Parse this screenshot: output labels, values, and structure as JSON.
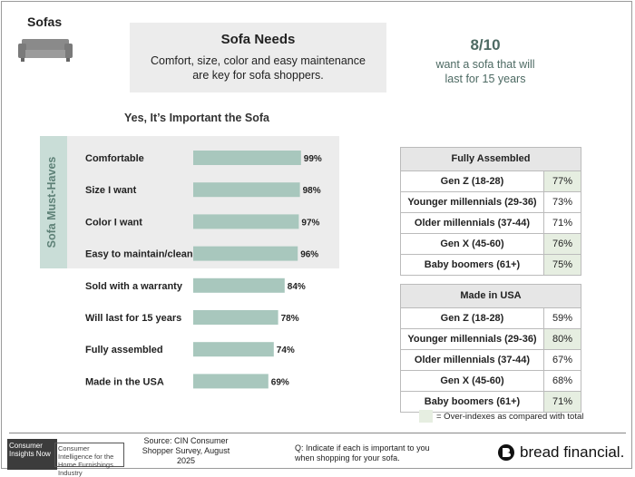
{
  "corner_title": "Sofas",
  "icons": {
    "corner": "sofa-icon",
    "brand": "bread-logo-icon"
  },
  "header": {
    "title": "Sofa Needs",
    "subtitle": "Comfort, size, color and easy maintenance are key for sofa shoppers."
  },
  "stat": {
    "value": "8/10",
    "text": "want a sofa that will last for 15 years"
  },
  "must_haves_label": "Sofa Must-Haves",
  "colors": {
    "bar": "#a8c7bd",
    "must_band": "#c9ddd7",
    "over_index": "#e6eee1",
    "header_bg": "#ececec"
  },
  "chart_data": {
    "type": "bar",
    "orientation": "horizontal",
    "title": "Yes, It’s Important the Sofa",
    "categories": [
      "Comfortable",
      "Size I want",
      "Color I want",
      "Easy to maintain/clean",
      "Sold with a warranty",
      "Will last for 15 years",
      "Fully assembled",
      "Made in the USA"
    ],
    "values": [
      99,
      98,
      97,
      96,
      84,
      78,
      74,
      69
    ],
    "value_labels": [
      "99%",
      "98%",
      "97%",
      "96%",
      "84%",
      "78%",
      "74%",
      "69%"
    ],
    "must_have_count": 4,
    "xlim": [
      0,
      100
    ],
    "grid": false
  },
  "tables": [
    {
      "title": "Fully Assembled",
      "rows": [
        {
          "label": "Gen Z (18-28)",
          "value": "77%",
          "over": true
        },
        {
          "label": "Younger millennials (29-36)",
          "value": "73%",
          "over": false
        },
        {
          "label": "Older millennials (37-44)",
          "value": "71%",
          "over": false
        },
        {
          "label": "Gen X (45-60)",
          "value": "76%",
          "over": true
        },
        {
          "label": "Baby boomers (61+)",
          "value": "75%",
          "over": true
        }
      ]
    },
    {
      "title": "Made in USA",
      "rows": [
        {
          "label": "Gen Z (18-28)",
          "value": "59%",
          "over": false
        },
        {
          "label": "Younger millennials (29-36)",
          "value": "80%",
          "over": true
        },
        {
          "label": "Older millennials (37-44)",
          "value": "67%",
          "over": false
        },
        {
          "label": "Gen X (45-60)",
          "value": "68%",
          "over": false
        },
        {
          "label": "Baby boomers (61+)",
          "value": "71%",
          "over": true
        }
      ]
    }
  ],
  "legend": "= Over-indexes as compared with total",
  "footer": {
    "logo": "Consumer Insights Now",
    "logo_tagline": "Consumer Intelligence for the Home Furnishings Industry",
    "source": "Source: CIN Consumer Shopper Survey, August 2025",
    "question": "Q: Indicate if each is important to you when shopping for your sofa.",
    "brand": "bread financial."
  }
}
